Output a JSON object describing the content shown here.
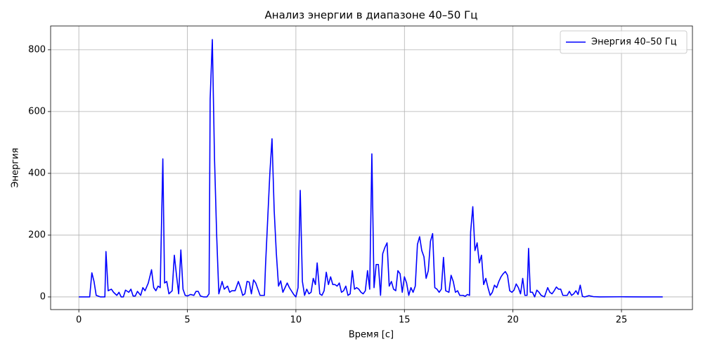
{
  "chart_data": {
    "type": "line",
    "title": "Анализ энергии в диапазоне 40–50 Гц",
    "xlabel": "Время [с]",
    "ylabel": "Энергия",
    "x": [
      0,
      0.5,
      0.6,
      0.7,
      0.8,
      1.0,
      1.2,
      1.25,
      1.35,
      1.5,
      1.6,
      1.75,
      1.85,
      1.95,
      2.05,
      2.15,
      2.3,
      2.4,
      2.5,
      2.6,
      2.7,
      2.85,
      2.95,
      3.05,
      3.2,
      3.35,
      3.45,
      3.55,
      3.65,
      3.75,
      3.87,
      3.95,
      4.05,
      4.15,
      4.3,
      4.4,
      4.5,
      4.6,
      4.7,
      4.8,
      4.9,
      5.0,
      5.15,
      5.3,
      5.4,
      5.5,
      5.6,
      5.75,
      5.9,
      6.0,
      6.05,
      6.15,
      6.25,
      6.35,
      6.45,
      6.6,
      6.7,
      6.85,
      6.95,
      7.05,
      7.2,
      7.35,
      7.45,
      7.55,
      7.65,
      7.75,
      7.85,
      7.95,
      8.05,
      8.15,
      8.35,
      8.55,
      8.6,
      8.7,
      8.8,
      8.9,
      9.0,
      9.1,
      9.2,
      9.3,
      9.4,
      9.5,
      9.6,
      9.7,
      9.9,
      10.0,
      10.1,
      10.2,
      10.3,
      10.4,
      10.5,
      10.6,
      10.7,
      10.8,
      10.9,
      10.98,
      11.1,
      11.2,
      11.3,
      11.4,
      11.5,
      11.6,
      11.7,
      11.8,
      11.9,
      12.0,
      12.1,
      12.2,
      12.3,
      12.4,
      12.5,
      12.6,
      12.7,
      12.8,
      12.9,
      13.0,
      13.1,
      13.2,
      13.3,
      13.4,
      13.5,
      13.6,
      13.7,
      13.8,
      13.9,
      14.0,
      14.1,
      14.2,
      14.3,
      14.4,
      14.5,
      14.6,
      14.7,
      14.8,
      14.9,
      15.0,
      15.1,
      15.2,
      15.3,
      15.4,
      15.5,
      15.6,
      15.7,
      15.8,
      15.9,
      16.0,
      16.1,
      16.2,
      16.3,
      16.4,
      16.5,
      16.6,
      16.7,
      16.8,
      16.9,
      17.05,
      17.15,
      17.25,
      17.35,
      17.45,
      17.55,
      17.7,
      17.8,
      17.9,
      18.0,
      18.05,
      18.15,
      18.25,
      18.35,
      18.45,
      18.55,
      18.65,
      18.75,
      18.85,
      18.95,
      19.05,
      19.15,
      19.25,
      19.35,
      19.45,
      19.55,
      19.65,
      19.75,
      19.85,
      19.95,
      20.05,
      20.15,
      20.25,
      20.35,
      20.45,
      20.55,
      20.65,
      20.72,
      20.8,
      20.9,
      21.0,
      21.1,
      21.2,
      21.3,
      21.45,
      21.6,
      21.7,
      21.8,
      21.9,
      22.0,
      22.1,
      22.2,
      22.3,
      22.4,
      22.5,
      22.6,
      22.7,
      22.8,
      22.9,
      23.0,
      23.1,
      23.2,
      23.3,
      23.5,
      23.7,
      24,
      25,
      26,
      26.9
    ],
    "series": [
      {
        "name": "Энергия 40–50 Гц",
        "color": "#0000ff",
        "values": [
          0,
          0,
          78,
          50,
          5,
          0,
          0,
          147,
          20,
          25,
          15,
          5,
          15,
          0,
          0,
          22,
          15,
          25,
          3,
          3,
          18,
          5,
          30,
          20,
          45,
          88,
          30,
          20,
          35,
          30,
          447,
          45,
          50,
          10,
          20,
          135,
          70,
          10,
          152,
          25,
          5,
          3,
          8,
          5,
          18,
          18,
          3,
          0,
          0,
          10,
          640,
          833,
          450,
          200,
          10,
          50,
          25,
          35,
          15,
          20,
          20,
          50,
          30,
          5,
          10,
          50,
          48,
          10,
          55,
          45,
          5,
          5,
          100,
          250,
          400,
          512,
          280,
          140,
          35,
          52,
          15,
          30,
          45,
          30,
          8,
          0,
          30,
          345,
          50,
          5,
          25,
          10,
          15,
          60,
          40,
          110,
          10,
          5,
          20,
          80,
          40,
          65,
          40,
          40,
          35,
          45,
          15,
          20,
          35,
          5,
          10,
          85,
          25,
          30,
          25,
          15,
          10,
          20,
          85,
          25,
          463,
          30,
          105,
          105,
          5,
          140,
          160,
          175,
          35,
          50,
          25,
          20,
          85,
          75,
          15,
          65,
          45,
          5,
          30,
          15,
          35,
          170,
          195,
          150,
          130,
          60,
          85,
          180,
          205,
          30,
          25,
          15,
          25,
          128,
          20,
          15,
          70,
          50,
          15,
          20,
          5,
          5,
          2,
          8,
          5,
          210,
          292,
          150,
          175,
          110,
          135,
          40,
          60,
          30,
          5,
          15,
          38,
          30,
          50,
          65,
          75,
          82,
          70,
          20,
          15,
          22,
          42,
          30,
          10,
          60,
          5,
          5,
          157,
          15,
          15,
          0,
          22,
          15,
          5,
          0,
          30,
          15,
          10,
          20,
          32,
          25,
          25,
          5,
          5,
          5,
          18,
          5,
          10,
          20,
          8,
          38,
          2,
          0,
          4,
          1,
          0,
          0.5,
          0,
          0
        ]
      }
    ],
    "xlim": [
      -1.3,
      28.27
    ],
    "ylim": [
      -41,
      877
    ],
    "xticks": [
      0,
      5,
      10,
      15,
      20,
      25
    ],
    "yticks": [
      0,
      200,
      400,
      600,
      800
    ],
    "grid": true,
    "legend": "upper right"
  }
}
